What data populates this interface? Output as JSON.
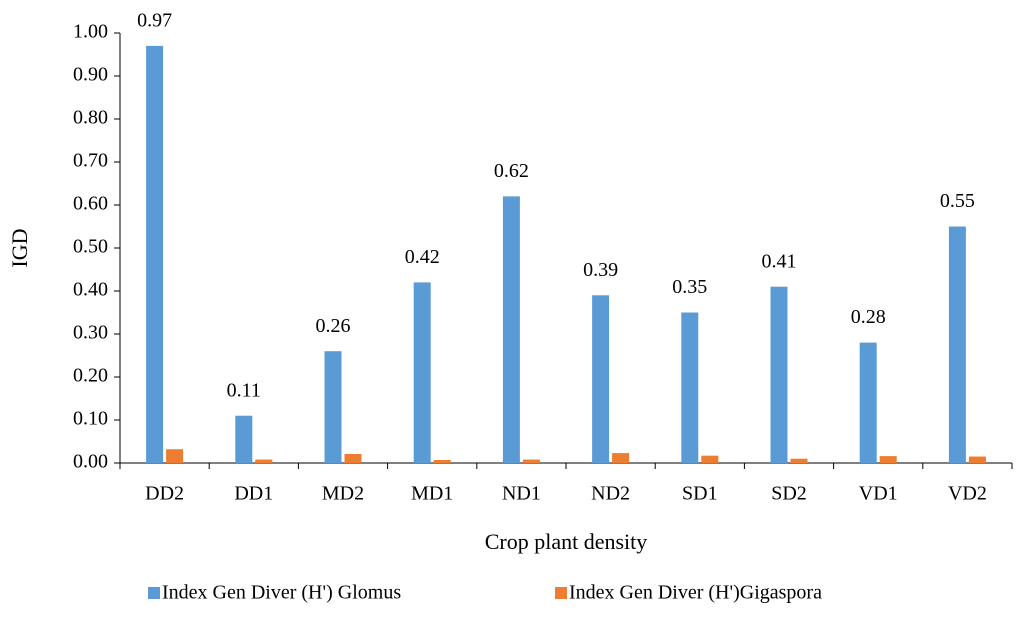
{
  "chart_data": {
    "type": "bar",
    "x_label": "Crop plant density",
    "y_label": "IGD",
    "categories": [
      "DD2",
      "DD1",
      "MD2",
      "MD1",
      "ND1",
      "ND2",
      "SD1",
      "SD2",
      "VD1",
      "VD2"
    ],
    "series": [
      {
        "name": "Index Gen Diver (H') Glomus",
        "color": "#5b9bd5",
        "values": [
          0.97,
          0.11,
          0.26,
          0.42,
          0.62,
          0.39,
          0.35,
          0.41,
          0.28,
          0.55
        ],
        "show_labels": true
      },
      {
        "name": "Index Gen Diver (H')Gigaspora",
        "color": "#ed7d31",
        "values": [
          0.032,
          0.008,
          0.021,
          0.007,
          0.008,
          0.023,
          0.017,
          0.01,
          0.016,
          0.015
        ],
        "show_labels": false
      }
    ],
    "ylim": [
      0,
      1
    ],
    "yticks": [
      {
        "value": 0,
        "label": "0.00"
      },
      {
        "value": 0.1,
        "label": "0.10"
      },
      {
        "value": 0.2,
        "label": "0.20"
      },
      {
        "value": 0.3,
        "label": "0.30"
      },
      {
        "value": 0.4,
        "label": "0.40"
      },
      {
        "value": 0.5,
        "label": "0.50"
      },
      {
        "value": 0.6,
        "label": "0.60"
      },
      {
        "value": 0.7,
        "label": "0.70"
      },
      {
        "value": 0.8,
        "label": "0.80"
      },
      {
        "value": 0.9,
        "label": "0.90"
      },
      {
        "value": 1,
        "label": "1.00"
      }
    ],
    "grid": false,
    "legend": "bottom"
  }
}
